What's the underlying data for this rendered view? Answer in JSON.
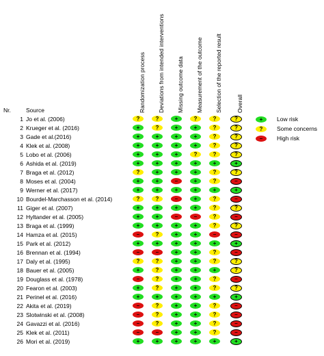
{
  "headers": {
    "nr": "Nr.",
    "source": "Source"
  },
  "domains": [
    "Randomization process",
    "Deviations from intended interventions",
    "Missing outcome data",
    "Measurement of the outcome",
    "Selection of the reported result",
    "Overall"
  ],
  "colors": {
    "low": "#22dd22",
    "some": "#ffee00",
    "high": "#dd1111"
  },
  "symbols": {
    "low": "+",
    "some": "?",
    "high": "–"
  },
  "legend": [
    {
      "level": "low",
      "label": "Low risk"
    },
    {
      "level": "some",
      "label": "Some concerns"
    },
    {
      "level": "high",
      "label": "High risk"
    }
  ],
  "studies": [
    {
      "nr": "1",
      "source": "Jo et al. (2006)",
      "ratings": [
        "some",
        "some",
        "low",
        "some",
        "some",
        "some"
      ]
    },
    {
      "nr": "2",
      "source": "Krueger et al. (2016)",
      "ratings": [
        "low",
        "some",
        "low",
        "low",
        "some",
        "some"
      ]
    },
    {
      "nr": "3",
      "source": "Gade et al.(2016)",
      "ratings": [
        "low",
        "low",
        "low",
        "low",
        "some",
        "some"
      ]
    },
    {
      "nr": "4",
      "source": "Klek et al. (2008)",
      "ratings": [
        "low",
        "low",
        "low",
        "low",
        "some",
        "some"
      ]
    },
    {
      "nr": "5",
      "source": "Lobo et al. (2006)",
      "ratings": [
        "low",
        "low",
        "low",
        "some",
        "some",
        "some"
      ]
    },
    {
      "nr": "6",
      "source": "Ashida et al. (2019)",
      "ratings": [
        "low",
        "low",
        "low",
        "low",
        "low",
        "low"
      ]
    },
    {
      "nr": "7",
      "source": "Braga et al. (2012)",
      "ratings": [
        "some",
        "low",
        "low",
        "low",
        "some",
        "some"
      ]
    },
    {
      "nr": "8",
      "source": "Moses et al. (2004)",
      "ratings": [
        "low",
        "low",
        "high",
        "low",
        "some",
        "high"
      ]
    },
    {
      "nr": "9",
      "source": "Werner et al. (2017)",
      "ratings": [
        "low",
        "low",
        "low",
        "low",
        "low",
        "low"
      ]
    },
    {
      "nr": "10",
      "source": "Bourdel-Marchasson et al. (2014)",
      "ratings": [
        "some",
        "some",
        "high",
        "low",
        "some",
        "high"
      ]
    },
    {
      "nr": "11",
      "source": "Giger et al. (2007)",
      "ratings": [
        "low",
        "low",
        "low",
        "low",
        "some",
        "some"
      ]
    },
    {
      "nr": "12",
      "source": "Hyltander et al. (2005)",
      "ratings": [
        "low",
        "low",
        "high",
        "high",
        "some",
        "high"
      ]
    },
    {
      "nr": "13",
      "source": "Braga et al. (1999)",
      "ratings": [
        "low",
        "low",
        "low",
        "low",
        "some",
        "some"
      ]
    },
    {
      "nr": "14",
      "source": "Hamza et al. (2015)",
      "ratings": [
        "high",
        "some",
        "low",
        "low",
        "high",
        "high"
      ]
    },
    {
      "nr": "15",
      "source": "Park et al. (2012)",
      "ratings": [
        "low",
        "low",
        "low",
        "low",
        "low",
        "low"
      ]
    },
    {
      "nr": "16",
      "source": "Brennan et al. (1994)",
      "ratings": [
        "high",
        "high",
        "low",
        "low",
        "some",
        "high"
      ]
    },
    {
      "nr": "17",
      "source": "Daly et al. (1995)",
      "ratings": [
        "some",
        "some",
        "low",
        "low",
        "some",
        "some"
      ]
    },
    {
      "nr": "18",
      "source": "Bauer et al. (2005)",
      "ratings": [
        "low",
        "some",
        "low",
        "low",
        "low",
        "some"
      ]
    },
    {
      "nr": "19",
      "source": "Douglass et al. (1978)",
      "ratings": [
        "high",
        "some",
        "low",
        "low",
        "some",
        "high"
      ]
    },
    {
      "nr": "20",
      "source": "Fearon et al. (2003)",
      "ratings": [
        "low",
        "some",
        "low",
        "low",
        "some",
        "some"
      ]
    },
    {
      "nr": "21",
      "source": "Perinel et al. (2016)",
      "ratings": [
        "low",
        "low",
        "low",
        "low",
        "low",
        "low"
      ]
    },
    {
      "nr": "22",
      "source": "Akita et al. (2019)",
      "ratings": [
        "high",
        "some",
        "low",
        "low",
        "some",
        "high"
      ]
    },
    {
      "nr": "23",
      "source": "Slotwinski et al. (2008)",
      "ratings": [
        "high",
        "some",
        "low",
        "low",
        "some",
        "high"
      ]
    },
    {
      "nr": "24",
      "source": "Gavazzi et al. (2016)",
      "ratings": [
        "high",
        "some",
        "low",
        "low",
        "some",
        "high"
      ]
    },
    {
      "nr": "25",
      "source": "Klek et al. (2011)",
      "ratings": [
        "high",
        "high",
        "low",
        "low",
        "some",
        "high"
      ]
    },
    {
      "nr": "26",
      "source": "Mori et al. (2019)",
      "ratings": [
        "low",
        "low",
        "low",
        "low",
        "low",
        "low"
      ]
    }
  ]
}
